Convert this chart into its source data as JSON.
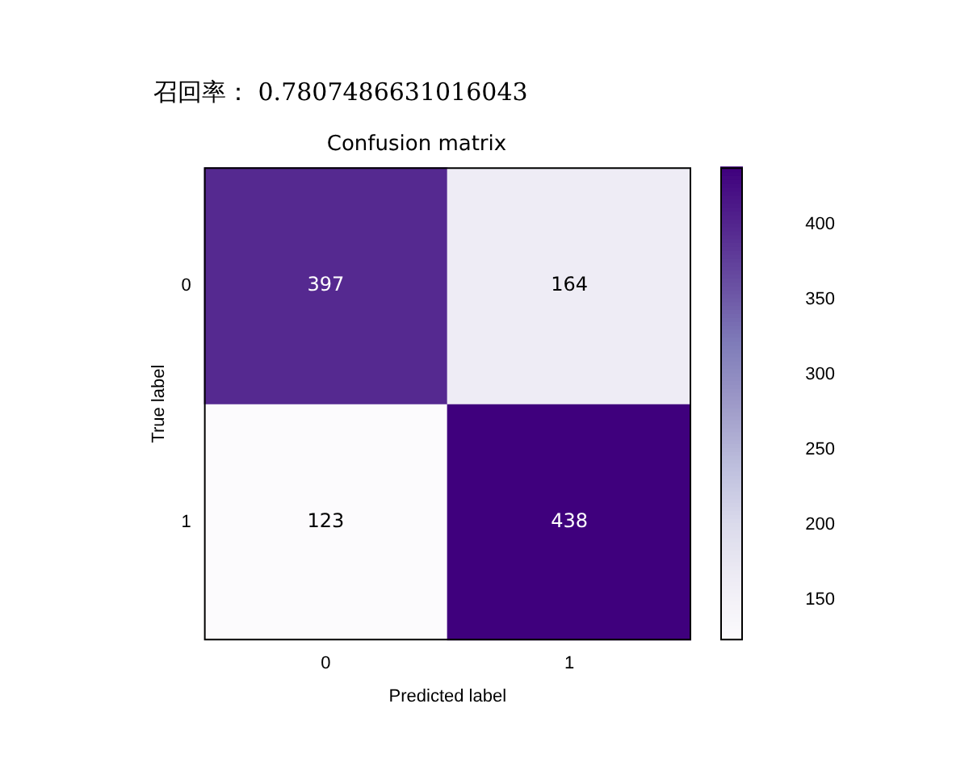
{
  "chart_data": {
    "type": "heatmap",
    "title": "Confusion matrix",
    "xlabel": "Predicted label",
    "ylabel": "True label",
    "annotations": [
      "召回率： 0.7807486631016043"
    ],
    "categories": [
      "0",
      "1"
    ],
    "y_categories": [
      "0",
      "1"
    ],
    "cells": [
      [
        397,
        164
      ],
      [
        123,
        438
      ]
    ],
    "clim": [
      123,
      438
    ],
    "cticks": [
      150,
      200,
      250,
      300,
      350,
      400
    ],
    "data_labels": true
  }
}
